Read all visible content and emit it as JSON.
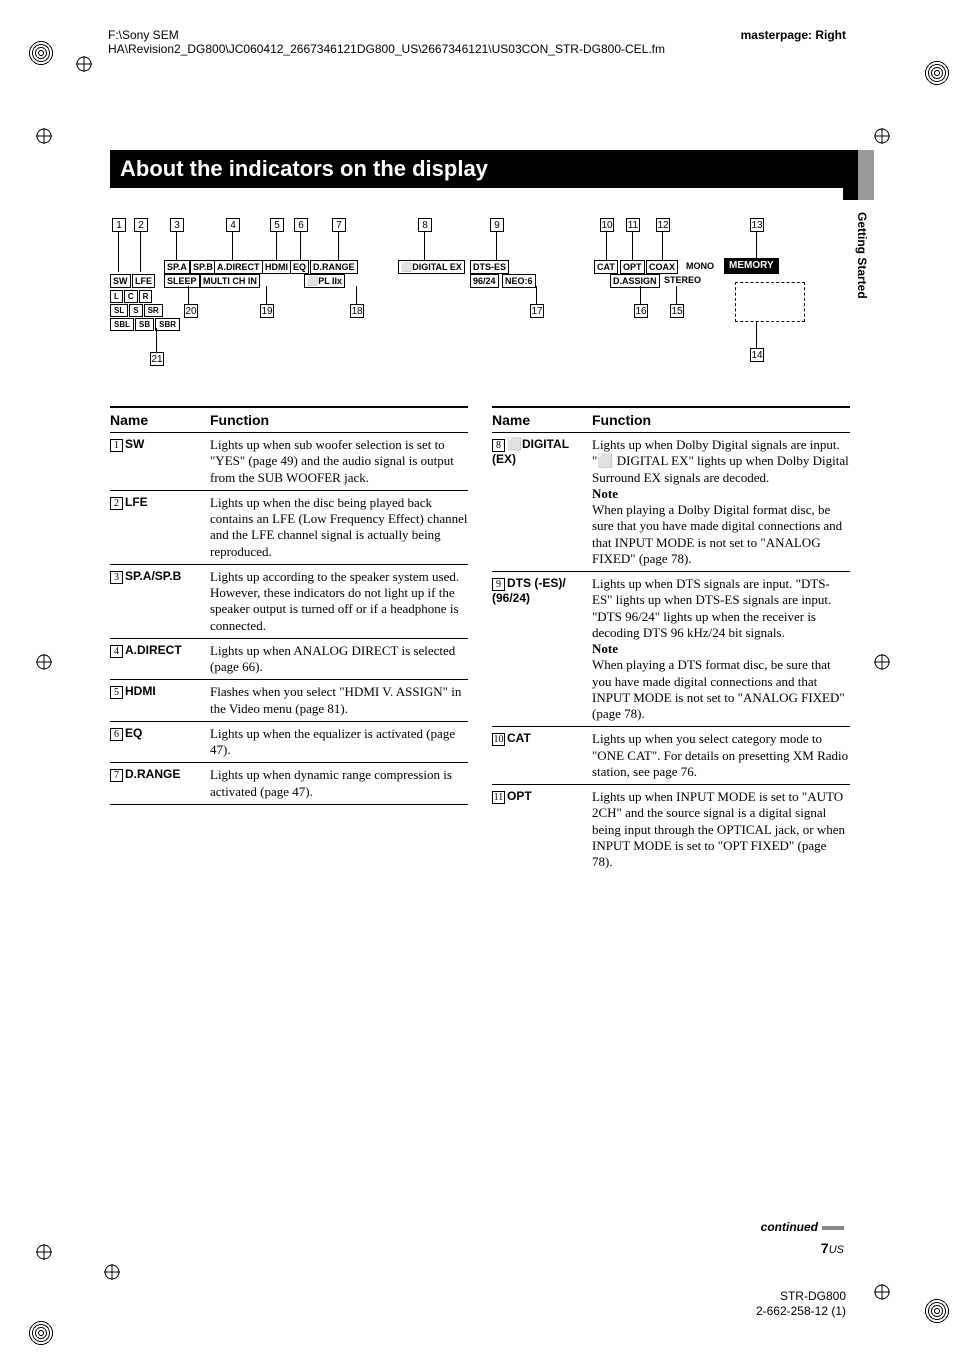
{
  "header": {
    "path": "F:\\Sony SEM\nHA\\Revision2_DG800\\JC060412_2667346121DG800_US\\2667346121\\US03CON_STR-DG800-CEL.fm",
    "masterpage": "masterpage: Right"
  },
  "side_label": "Getting Started",
  "title": "About the indicators on the display",
  "diagram": {
    "top_numbers": [
      "1",
      "2",
      "3",
      "4",
      "5",
      "6",
      "7",
      "8",
      "9",
      "10",
      "11",
      "12",
      "13"
    ],
    "mid_numbers_left": [
      "20",
      "19",
      "18"
    ],
    "mid_numbers_right": [
      "17",
      "16",
      "15",
      "14"
    ],
    "bottom_number": "21",
    "row1_boxes": [
      "SP.A",
      "SP.B",
      "A.DIRECT",
      "HDMI",
      "EQ",
      "D.RANGE"
    ],
    "row2_left": [
      "SW",
      "LFE",
      "SLEEP",
      "MULTI CH IN",
      "⬜PL IIx"
    ],
    "center_boxes": [
      "⬜DIGITAL EX",
      "DTS-ES",
      "96/24",
      "NEO:6"
    ],
    "right_top": [
      "CAT",
      "OPT",
      "COAX",
      "MONO",
      "MEMORY"
    ],
    "right_bottom": [
      "D.ASSIGN",
      "STEREO"
    ],
    "grid_rows": [
      [
        "L",
        "C",
        "R"
      ],
      [
        "SL",
        "S",
        "SR"
      ],
      [
        "SBL",
        "SB",
        "SBR"
      ]
    ]
  },
  "table_headers": {
    "name": "Name",
    "function": "Function"
  },
  "left_table": [
    {
      "num": "1",
      "name": "SW",
      "func": "Lights up when sub woofer selection is set to \"YES\" (page 49) and the audio signal is output from the SUB WOOFER jack."
    },
    {
      "num": "2",
      "name": "LFE",
      "func": "Lights up when the disc being played back contains an LFE (Low Frequency Effect) channel and the LFE channel signal is actually being reproduced."
    },
    {
      "num": "3",
      "name": "SP.A/SP.B",
      "func": "Lights up according to the speaker system used. However, these indicators do not light up if the speaker output is turned off or if a headphone is connected."
    },
    {
      "num": "4",
      "name": "A.DIRECT",
      "func": "Lights up when ANALOG DIRECT is selected (page 66)."
    },
    {
      "num": "5",
      "name": "HDMI",
      "func": "Flashes when you select \"HDMI V. ASSIGN\" in the Video menu (page 81)."
    },
    {
      "num": "6",
      "name": "EQ",
      "func": "Lights up when the equalizer is activated (page 47)."
    },
    {
      "num": "7",
      "name": "D.RANGE",
      "func": "Lights up when dynamic range compression is activated (page 47)."
    }
  ],
  "right_table": [
    {
      "num": "8",
      "name": "⬜DIGITAL (EX)",
      "func_main": "Lights up when Dolby Digital signals are input. \"⬜ DIGITAL EX\" lights up when Dolby Digital Surround EX signals are decoded.",
      "note_label": "Note",
      "func_note": "When playing a Dolby Digital format disc, be sure that you have made digital connections and that INPUT MODE is not set to \"ANALOG FIXED\" (page 78)."
    },
    {
      "num": "9",
      "name": "DTS (-ES)/ (96/24)",
      "func_main": "Lights up when DTS signals are input. \"DTS-ES\" lights up when DTS-ES signals are input. \"DTS 96/24\" lights up when the receiver is decoding DTS 96 kHz/24 bit signals.",
      "note_label": "Note",
      "func_note": "When playing a DTS format disc, be sure that you have made digital connections and that INPUT MODE is not set to \"ANALOG FIXED\" (page 78)."
    },
    {
      "num": "10",
      "name": "CAT",
      "func_main": "Lights up when you select category mode to \"ONE CAT\". For details on presetting XM Radio station, see page 76."
    },
    {
      "num": "11",
      "name": "OPT",
      "func_main": "Lights up when INPUT MODE is set to \"AUTO 2CH\" and the source signal is a digital signal being input through the OPTICAL jack, or when INPUT MODE is set to \"OPT FIXED\" (page 78)."
    }
  ],
  "footer": {
    "continued": "continued",
    "page_num": "7",
    "page_suffix": "US",
    "model": "STR-DG800",
    "code": "2-662-258-12 (1)"
  }
}
